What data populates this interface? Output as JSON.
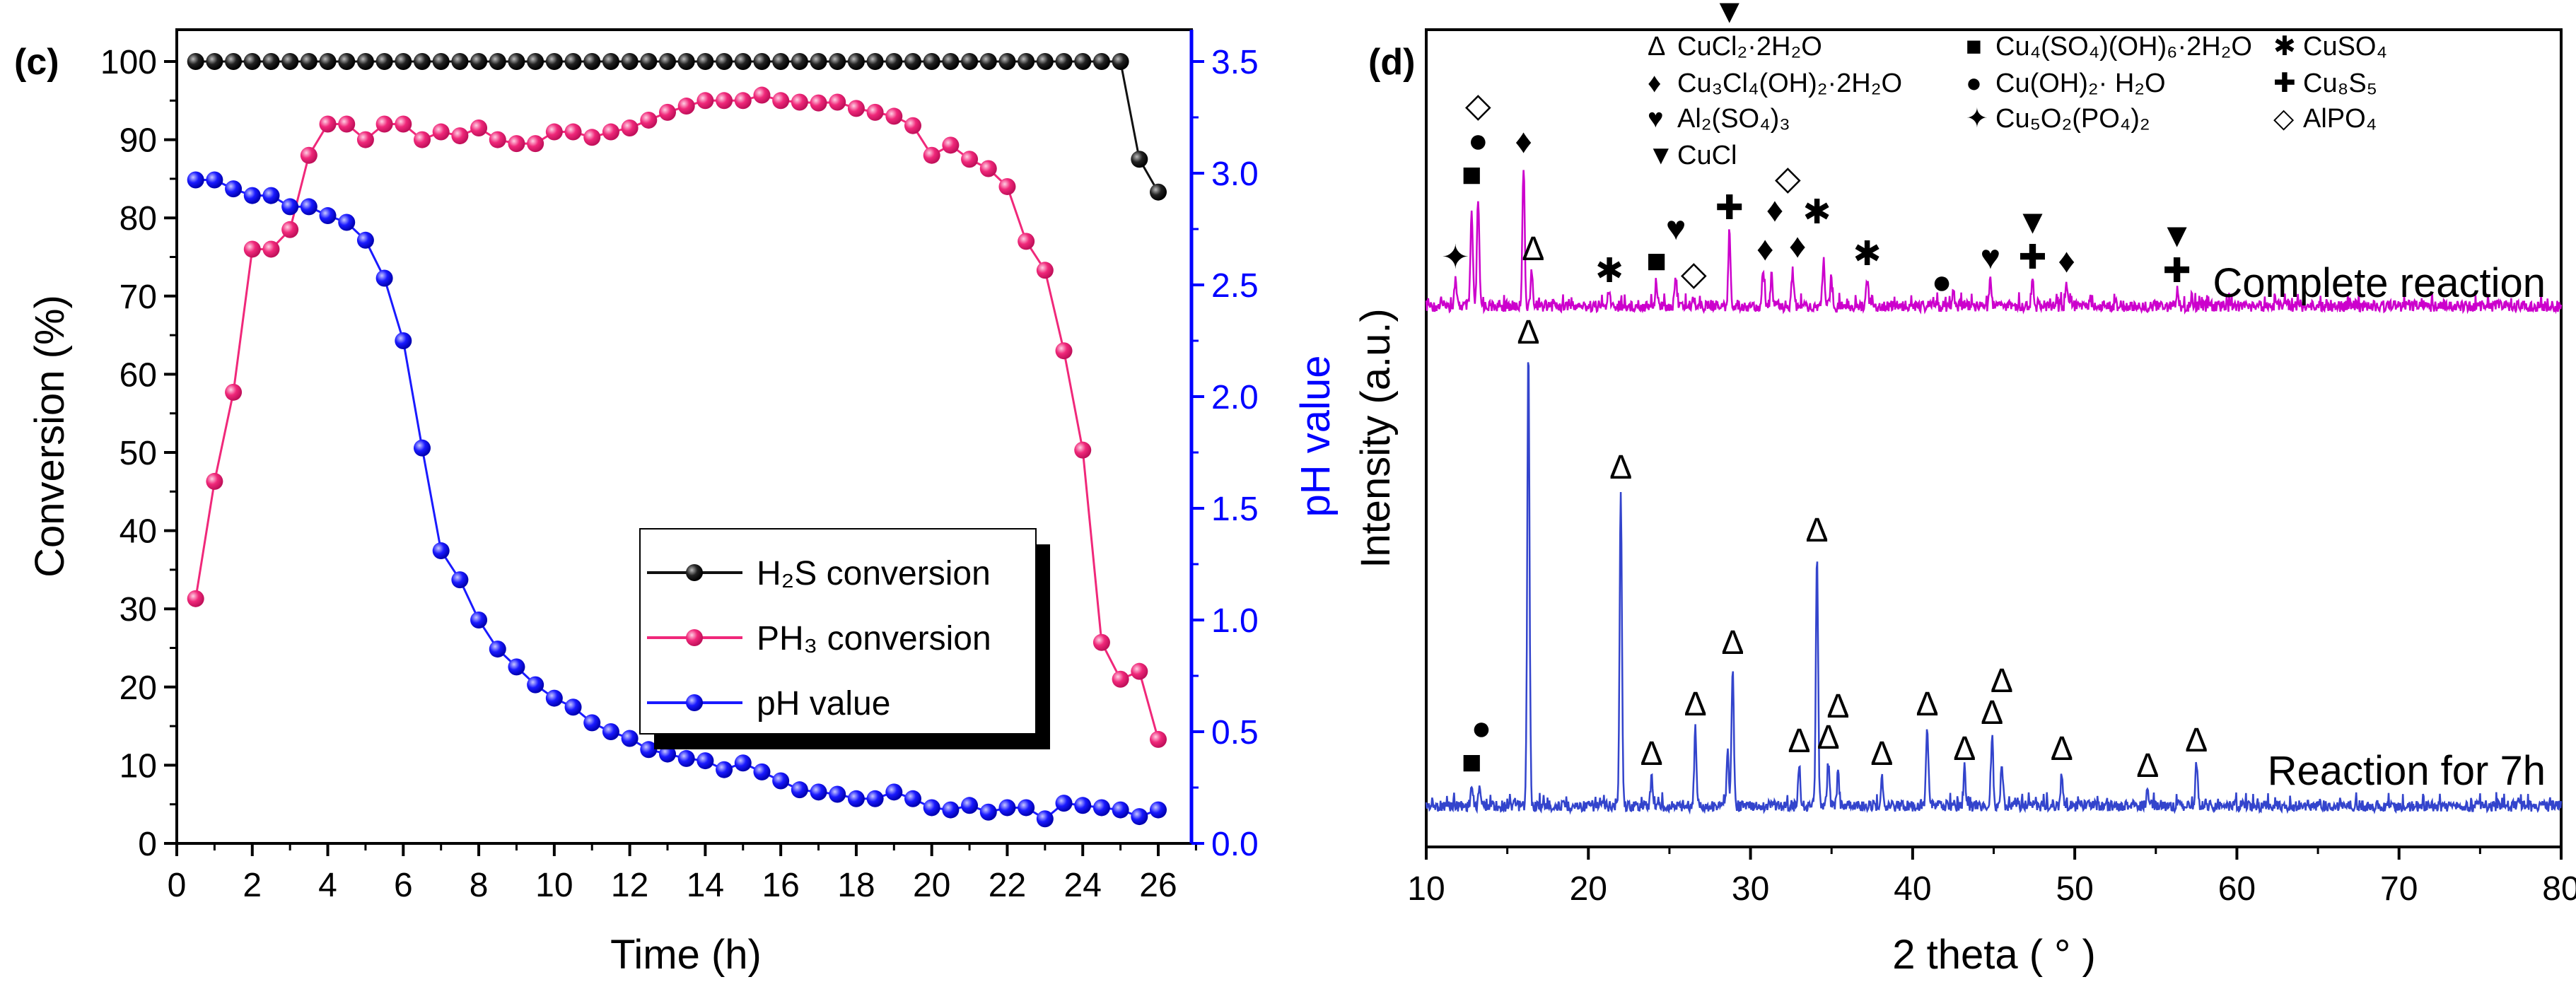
{
  "chart_data": [
    {
      "panel_label": "(c)",
      "type": "line",
      "xlabel": "Time (h)",
      "ylabel": "Conversion (%)",
      "y2label": "pH value",
      "xlim": [
        0,
        27
      ],
      "ylim": [
        0,
        105
      ],
      "y2lim": [
        0,
        3.675
      ],
      "xticks": [
        "0",
        "2",
        "4",
        "6",
        "8",
        "10",
        "12",
        "14",
        "16",
        "18",
        "20",
        "22",
        "24",
        "26"
      ],
      "yticks": [
        "0",
        "10",
        "20",
        "30",
        "40",
        "50",
        "60",
        "70",
        "80",
        "90",
        "100"
      ],
      "y2ticks": [
        "0.0",
        "0.5",
        "1.0",
        "1.5",
        "2.0",
        "2.5",
        "3.0",
        "3.5"
      ],
      "legend_position": "center-right",
      "x": [
        0.5,
        1,
        1.5,
        2,
        2.5,
        3,
        3.5,
        4,
        4.5,
        5,
        5.5,
        6,
        6.5,
        7,
        7.5,
        8,
        8.5,
        9,
        9.5,
        10,
        10.5,
        11,
        11.5,
        12,
        12.5,
        13,
        13.5,
        14,
        14.5,
        15,
        15.5,
        16,
        16.5,
        17,
        17.5,
        18,
        18.5,
        19,
        19.5,
        20,
        20.5,
        21,
        21.5,
        22,
        22.5,
        23,
        23.5,
        24,
        24.5,
        25,
        25.5,
        26
      ],
      "series": [
        {
          "name": "H₂S conversion",
          "axis": "left",
          "color": "#111111",
          "values": [
            100,
            100,
            100,
            100,
            100,
            100,
            100,
            100,
            100,
            100,
            100,
            100,
            100,
            100,
            100,
            100,
            100,
            100,
            100,
            100,
            100,
            100,
            100,
            100,
            100,
            100,
            100,
            100,
            100,
            100,
            100,
            100,
            100,
            100,
            100,
            100,
            100,
            100,
            100,
            100,
            100,
            100,
            100,
            100,
            100,
            100,
            100,
            100,
            100,
            100,
            87.5,
            83.3
          ]
        },
        {
          "name": "PH₃ conversion",
          "axis": "left",
          "color": "#f0287a",
          "values": [
            31.3,
            46.3,
            57.7,
            76,
            76,
            78.5,
            88,
            92,
            92,
            90,
            92,
            92,
            90,
            91,
            90.5,
            91.5,
            90,
            89.5,
            89.5,
            91,
            91,
            90.3,
            91,
            91.5,
            92.5,
            93.5,
            94.3,
            95,
            95,
            95,
            95.7,
            95,
            94.8,
            94.7,
            94.8,
            94,
            93.5,
            93,
            91.8,
            88,
            89.3,
            87.5,
            86.3,
            84,
            77,
            73.3,
            63,
            50.3,
            25.7,
            21,
            22,
            13.3
          ]
        },
        {
          "name": "pH value",
          "axis": "right",
          "color": "#1a1aff",
          "values": [
            2.97,
            2.97,
            2.93,
            2.9,
            2.9,
            2.85,
            2.85,
            2.81,
            2.78,
            2.7,
            2.53,
            2.25,
            1.77,
            1.31,
            1.18,
            1.0,
            0.87,
            0.79,
            0.71,
            0.65,
            0.61,
            0.54,
            0.5,
            0.47,
            0.42,
            0.4,
            0.38,
            0.37,
            0.33,
            0.36,
            0.32,
            0.28,
            0.24,
            0.23,
            0.22,
            0.2,
            0.2,
            0.23,
            0.2,
            0.16,
            0.15,
            0.17,
            0.14,
            0.16,
            0.16,
            0.11,
            0.18,
            0.17,
            0.16,
            0.15,
            0.12,
            0.15
          ]
        }
      ]
    },
    {
      "panel_label": "(d)",
      "type": "line",
      "xlabel": "2 theta ( ° )",
      "ylabel": "Intensity (a.u.)",
      "xlim": [
        10,
        80
      ],
      "xticks": [
        "10",
        "20",
        "30",
        "40",
        "50",
        "60",
        "70",
        "80"
      ],
      "legend_position": "top",
      "legend": [
        {
          "symbol": "Δ",
          "label": "CuCl₂·2H₂O"
        },
        {
          "symbol": "■",
          "label": "Cu₄(SO₄)(OH)₆·2H₂O"
        },
        {
          "symbol": "✱",
          "label": "CuSO₄"
        },
        {
          "symbol": "♦",
          "label": "Cu₃Cl₄(OH)₂·2H₂O"
        },
        {
          "symbol": "●",
          "label": "Cu(OH)₂· H₂O"
        },
        {
          "symbol": "✚",
          "label": "Cu₈S₅"
        },
        {
          "symbol": "♥",
          "label": "Al₂(SO₄)₃"
        },
        {
          "symbol": "✦",
          "label": "Cu₅O₂(PO₄)₂"
        },
        {
          "symbol": "◇",
          "label": "AlPO₄"
        },
        {
          "symbol": "▼",
          "label": "CuCl"
        }
      ],
      "series": [
        {
          "name": "Complete reaction",
          "color": "#cc00cc",
          "peaks": [
            [
              11.8,
              35
            ],
            [
              12.8,
              133
            ],
            [
              13.2,
              152
            ],
            [
              16.0,
              199
            ],
            [
              16.5,
              47
            ],
            [
              21.3,
              16
            ],
            [
              24.2,
              30
            ],
            [
              25.4,
              40
            ],
            [
              26.5,
              12
            ],
            [
              28.7,
              105
            ],
            [
              30.8,
              47
            ],
            [
              31.3,
              42
            ],
            [
              32.6,
              51
            ],
            [
              34.5,
              63
            ],
            [
              35.0,
              35
            ],
            [
              37.2,
              40
            ],
            [
              42.5,
              21
            ],
            [
              44.8,
              35
            ],
            [
              47.4,
              35
            ],
            [
              49.5,
              30
            ],
            [
              56.3,
              16
            ]
          ],
          "markers": [
            [
              11.8,
              [
                "✦"
              ]
            ],
            [
              12.8,
              [
                "■"
              ]
            ],
            [
              13.2,
              [
                "●",
                "◇"
              ]
            ],
            [
              16.0,
              [
                "♦"
              ]
            ],
            [
              16.6,
              [
                "Δ"
              ]
            ],
            [
              21.3,
              [
                "✱"
              ]
            ],
            [
              24.2,
              [
                "■"
              ]
            ],
            [
              25.4,
              [
                "♥"
              ]
            ],
            [
              26.5,
              [
                "◇"
              ]
            ],
            [
              28.7,
              [
                "✚",
                "▼"
              ]
            ],
            [
              30.9,
              [
                "♦"
              ]
            ],
            [
              31.5,
              [
                "♦"
              ]
            ],
            [
              32.3,
              [
                "◇"
              ]
            ],
            [
              32.9,
              [
                "♦"
              ]
            ],
            [
              34.1,
              [
                "✱"
              ]
            ],
            [
              37.2,
              [
                "✱"
              ]
            ],
            [
              41.8,
              [
                "●"
              ]
            ],
            [
              44.8,
              [
                "♥"
              ]
            ],
            [
              47.4,
              [
                "✚",
                "▼"
              ]
            ],
            [
              49.5,
              [
                "♦"
              ]
            ],
            [
              56.3,
              [
                "✚",
                "▼"
              ]
            ]
          ]
        },
        {
          "name": "Reaction for 7h",
          "color": "#3344cc",
          "peaks": [
            [
              12.8,
              28
            ],
            [
              13.3,
              28
            ],
            [
              16.3,
              636
            ],
            [
              22.0,
              445
            ],
            [
              23.9,
              40
            ],
            [
              26.6,
              110
            ],
            [
              28.6,
              75
            ],
            [
              28.9,
              197
            ],
            [
              33.0,
              58
            ],
            [
              34.1,
              356
            ],
            [
              34.8,
              63
            ],
            [
              35.4,
              47
            ],
            [
              38.1,
              40
            ],
            [
              40.9,
              110
            ],
            [
              43.2,
              47
            ],
            [
              44.9,
              98
            ],
            [
              45.5,
              59
            ],
            [
              49.2,
              47
            ],
            [
              54.5,
              23
            ],
            [
              57.5,
              59
            ]
          ],
          "markers": [
            [
              12.8,
              [
                "■"
              ]
            ],
            [
              13.4,
              [
                "●"
              ]
            ],
            [
              16.3,
              [
                "Δ"
              ]
            ],
            [
              22.0,
              [
                "Δ"
              ]
            ],
            [
              23.9,
              [
                "Δ"
              ]
            ],
            [
              26.6,
              [
                "Δ"
              ]
            ],
            [
              28.9,
              [
                "Δ"
              ]
            ],
            [
              33.0,
              [
                "Δ"
              ]
            ],
            [
              34.1,
              [
                "Δ"
              ]
            ],
            [
              34.8,
              [
                "Δ"
              ]
            ],
            [
              35.4,
              [
                "Δ"
              ]
            ],
            [
              38.1,
              [
                "Δ"
              ]
            ],
            [
              40.9,
              [
                "Δ"
              ]
            ],
            [
              43.2,
              [
                "Δ"
              ]
            ],
            [
              44.9,
              [
                "Δ"
              ]
            ],
            [
              45.5,
              [
                "Δ"
              ]
            ],
            [
              49.2,
              [
                "Δ"
              ]
            ],
            [
              54.5,
              [
                "Δ"
              ]
            ],
            [
              57.5,
              [
                "Δ"
              ]
            ]
          ]
        }
      ]
    }
  ]
}
